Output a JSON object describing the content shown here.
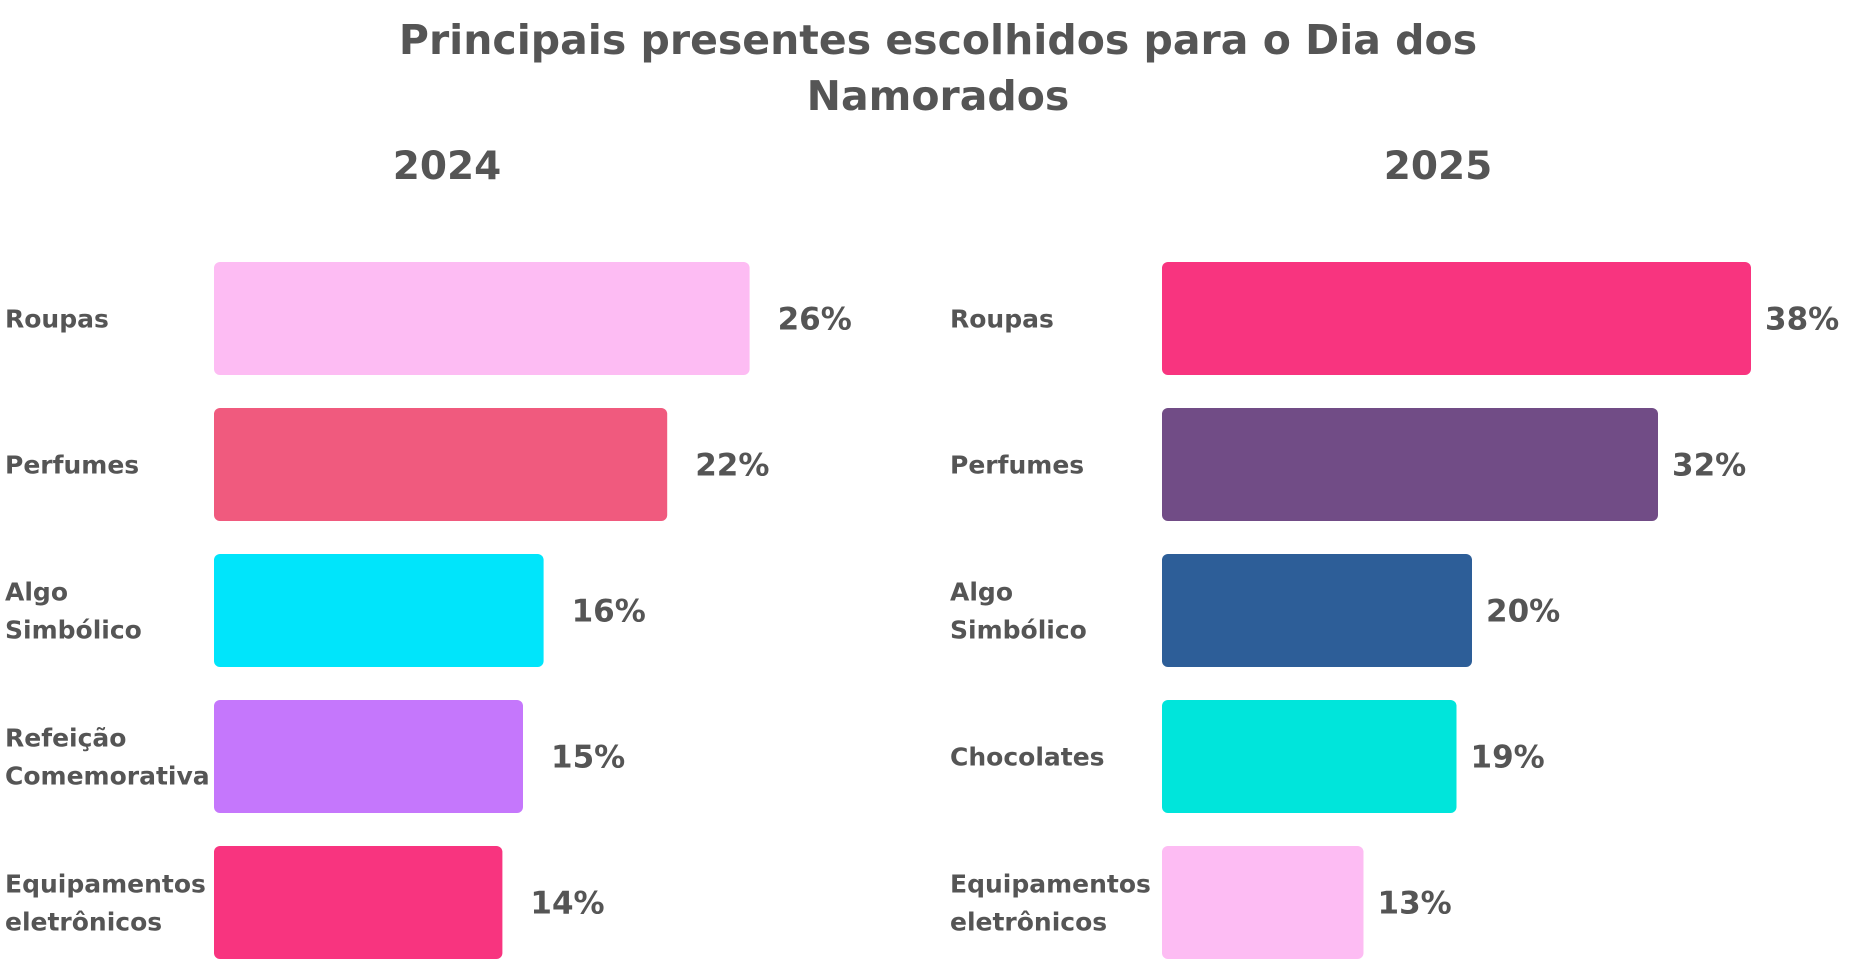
{
  "title_lines": [
    "Principais presentes escolhidos para o Dia dos",
    "Namorados"
  ],
  "chart_data": [
    {
      "type": "bar",
      "orientation": "horizontal",
      "title": "2024",
      "categories": [
        [
          "Roupas"
        ],
        [
          "Perfumes"
        ],
        [
          "Algo",
          "Simbólico"
        ],
        [
          "Refeição",
          "Comemorativa"
        ],
        [
          "Equipamentos",
          "eletrônicos"
        ]
      ],
      "values": [
        26,
        22,
        16,
        15,
        14
      ],
      "value_labels": [
        "26%",
        "22%",
        "16%",
        "15%",
        "14%"
      ],
      "colors": [
        "#FDBCF3",
        "#F05A7E",
        "#00E5FB",
        "#C577FC",
        "#F8347F"
      ],
      "grid": false,
      "legend": "none"
    },
    {
      "type": "bar",
      "orientation": "horizontal",
      "title": "2025",
      "categories": [
        [
          "Roupas"
        ],
        [
          "Perfumes"
        ],
        [
          "Algo",
          "Simbólico"
        ],
        [
          "Chocolates"
        ],
        [
          "Equipamentos",
          "eletrônicos"
        ]
      ],
      "values": [
        38,
        32,
        20,
        19,
        13
      ],
      "value_labels": [
        "38%",
        "32%",
        "20%",
        "19%",
        "13%"
      ],
      "colors": [
        "#F8347F",
        "#714C86",
        "#2D5E98",
        "#00E5DB",
        "#FDBCF3"
      ],
      "grid": false,
      "legend": "none"
    }
  ]
}
